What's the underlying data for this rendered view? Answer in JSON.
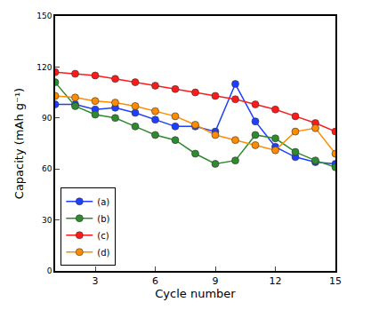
{
  "chart_data": {
    "type": "line",
    "x": [
      1,
      2,
      3,
      4,
      5,
      6,
      7,
      8,
      9,
      10,
      11,
      12,
      13,
      14,
      15
    ],
    "x_label": "Cycle number",
    "y_label": "Capacity (mAh g⁻¹)",
    "xlim": [
      1,
      15
    ],
    "xticks": [
      3,
      6,
      9,
      12,
      15
    ],
    "ylim": [
      0,
      150
    ],
    "yticks": [
      0,
      30,
      60,
      90,
      120,
      150
    ],
    "legend": "lower left",
    "marker": "circle",
    "series": [
      {
        "name": "(a)",
        "color": "#1f3fff",
        "values": [
          98,
          98,
          95,
          96,
          93,
          89,
          85,
          85,
          82,
          110,
          88,
          73,
          67,
          64,
          63
        ]
      },
      {
        "name": "(b)",
        "color": "#2e8b2e",
        "values": [
          111,
          97,
          92,
          90,
          85,
          80,
          77,
          69,
          63,
          65,
          80,
          78,
          70,
          65,
          61
        ]
      },
      {
        "name": "(c)",
        "color": "#ff1a1a",
        "values": [
          117,
          116,
          115,
          113,
          111,
          109,
          107,
          105,
          103,
          101,
          98,
          95,
          91,
          87,
          82
        ]
      },
      {
        "name": "(d)",
        "color": "#ff8c00",
        "values": [
          103,
          102,
          100,
          99,
          97,
          94,
          91,
          86,
          80,
          77,
          74,
          71,
          82,
          84,
          69
        ]
      }
    ]
  }
}
